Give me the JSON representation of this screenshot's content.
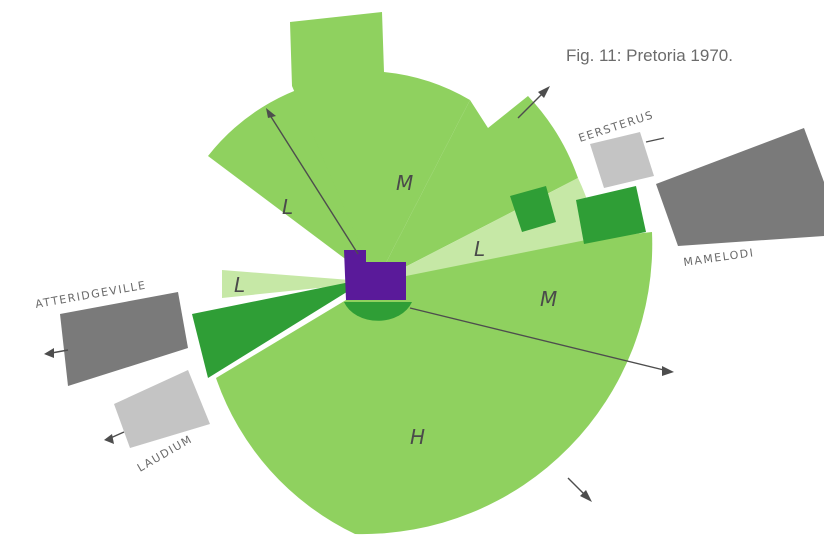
{
  "caption": "Fig. 11: Pretoria 1970.",
  "colors": {
    "light_green_zone": "#8fd15f",
    "pale_green_zone": "#c6e8a6",
    "dark_green_zone": "#2f9e36",
    "cbd": "#5a1a9a",
    "township_dark": "#7a7a7a",
    "township_light": "#c4c4c4"
  },
  "zones": {
    "l_northwest": "L",
    "m_north": "M",
    "l_east": "L",
    "m_east": "M",
    "l_west": "L",
    "h_south": "H"
  },
  "townships": {
    "eersterus": "EERSTERUS",
    "mamelodi": "MAMELODI",
    "atteridgeville": "ATTERIDGEVILLE",
    "laudium": "LAUDIUM"
  }
}
